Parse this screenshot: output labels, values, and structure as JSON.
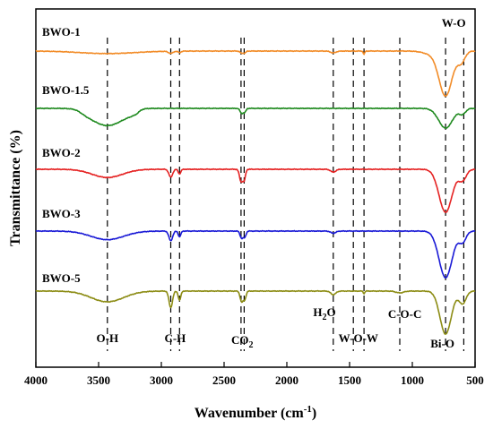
{
  "chart_data": {
    "type": "line",
    "xlabel": "Wavenumber (cm",
    "xlabel_sup": "-1",
    "xlabel_end": ")",
    "ylabel": "Transmittance (%)",
    "xlim": [
      4000,
      500
    ],
    "x_reversed": true,
    "x_ticks": [
      4000,
      3500,
      3000,
      2500,
      2000,
      1500,
      1000,
      500
    ],
    "y_ticks_shown": false,
    "grid": false,
    "series": [
      {
        "name": "BWO-1",
        "color": "#f28c28",
        "baseline": 0.5,
        "dips": [
          [
            3430,
            220,
            0.07
          ],
          [
            2925,
            18,
            0.06
          ],
          [
            2855,
            12,
            0.04
          ],
          [
            2360,
            12,
            0.06
          ],
          [
            2335,
            10,
            0.05
          ],
          [
            1630,
            22,
            0.05
          ],
          [
            1385,
            6,
            0.09
          ],
          [
            860,
            60,
            0.07
          ],
          [
            735,
            52,
            1.25
          ],
          [
            610,
            30,
            0.3
          ]
        ],
        "plateaus": []
      },
      {
        "name": "BWO-1.5",
        "color": "#1f8a1f",
        "baseline": 0.5,
        "dips": [
          [
            3430,
            110,
            0.32
          ],
          [
            2360,
            12,
            0.14
          ],
          [
            2335,
            10,
            0.1
          ],
          [
            735,
            55,
            0.55
          ],
          [
            600,
            25,
            0.15
          ]
        ],
        "plateaus": [
          [
            3640,
            3180,
            0.16
          ]
        ]
      },
      {
        "name": "BWO-2",
        "color": "#e52222",
        "baseline": 0.5,
        "dips": [
          [
            3430,
            120,
            0.23
          ],
          [
            2925,
            15,
            0.22
          ],
          [
            2855,
            10,
            0.13
          ],
          [
            2365,
            12,
            0.34
          ],
          [
            2340,
            10,
            0.3
          ],
          [
            1630,
            20,
            0.08
          ],
          [
            735,
            52,
            1.2
          ],
          [
            600,
            30,
            0.3
          ]
        ],
        "plateaus": []
      },
      {
        "name": "BWO-3",
        "color": "#1a1ad6",
        "baseline": 0.5,
        "dips": [
          [
            3430,
            130,
            0.24
          ],
          [
            2925,
            15,
            0.27
          ],
          [
            2855,
            10,
            0.16
          ],
          [
            2360,
            12,
            0.2
          ],
          [
            2335,
            10,
            0.16
          ],
          [
            1630,
            20,
            0.06
          ],
          [
            735,
            52,
            1.3
          ],
          [
            600,
            28,
            0.3
          ]
        ],
        "plateaus": []
      },
      {
        "name": "BWO-5",
        "color": "#8c8c14",
        "baseline": 0.5,
        "dips": [
          [
            3430,
            130,
            0.3
          ],
          [
            2925,
            14,
            0.46
          ],
          [
            2855,
            10,
            0.26
          ],
          [
            2360,
            12,
            0.3
          ],
          [
            2335,
            10,
            0.22
          ],
          [
            1630,
            20,
            0.1
          ],
          [
            1385,
            6,
            0.07
          ],
          [
            1100,
            30,
            0.05
          ],
          [
            735,
            45,
            1.2
          ],
          [
            600,
            28,
            0.35
          ]
        ],
        "plateaus": []
      }
    ],
    "marker_lines": [
      3430,
      2925,
      2855,
      2365,
      2340,
      1630,
      1470,
      1385,
      1100,
      735,
      590
    ],
    "annotations": [
      {
        "text": "O-H",
        "x": 3430
      },
      {
        "text": "C-H",
        "x": 2890
      },
      {
        "text": "CO",
        "sub": "2",
        "x": 2355
      },
      {
        "text": "H",
        "sub": "2",
        "text2": "O",
        "x": 1700
      },
      {
        "text": "W-O-W",
        "x": 1430
      },
      {
        "text": "C-O-C",
        "x": 1060
      },
      {
        "text": "Bi-O",
        "x": 760
      },
      {
        "text": "W-O",
        "x": 670
      }
    ]
  }
}
